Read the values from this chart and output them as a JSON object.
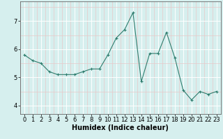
{
  "x": [
    0,
    1,
    2,
    3,
    4,
    5,
    6,
    7,
    8,
    9,
    10,
    11,
    12,
    13,
    14,
    15,
    16,
    17,
    18,
    19,
    20,
    21,
    22,
    23
  ],
  "y": [
    5.8,
    5.6,
    5.5,
    5.2,
    5.1,
    5.1,
    5.1,
    5.2,
    5.3,
    5.3,
    5.8,
    6.4,
    6.7,
    7.3,
    4.85,
    5.85,
    5.85,
    6.6,
    5.7,
    4.55,
    4.2,
    4.5,
    4.4,
    4.5
  ],
  "line_color": "#2e7d6e",
  "marker": "+",
  "marker_size": 3,
  "bg_color": "#d6efee",
  "major_grid_color": "#ffffff",
  "minor_grid_color": "#e8c8c8",
  "xlabel": "Humidex (Indice chaleur)",
  "ylim": [
    3.7,
    7.7
  ],
  "xlim": [
    -0.5,
    23.5
  ],
  "yticks": [
    4,
    5,
    6,
    7
  ],
  "xticks": [
    0,
    1,
    2,
    3,
    4,
    5,
    6,
    7,
    8,
    9,
    10,
    11,
    12,
    13,
    14,
    15,
    16,
    17,
    18,
    19,
    20,
    21,
    22,
    23
  ],
  "xlabel_fontsize": 7,
  "tick_fontsize": 6,
  "linewidth": 0.8,
  "spine_color": "#666666"
}
